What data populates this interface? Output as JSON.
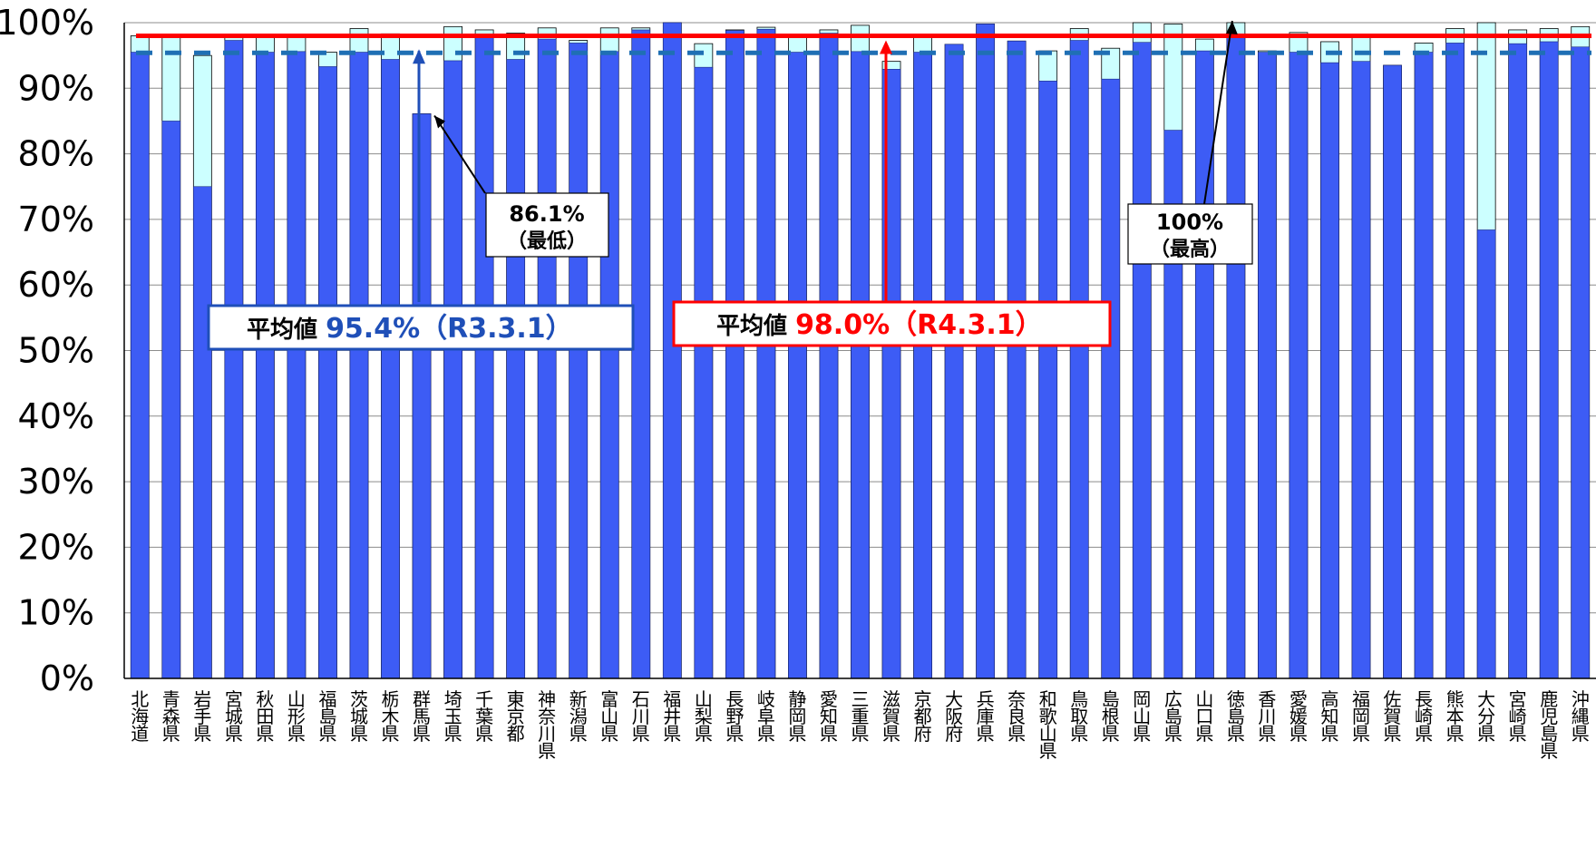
{
  "chart_data": {
    "type": "bar",
    "ylim": [
      0,
      100
    ],
    "y_tick_labels": [
      "0%",
      "10%",
      "20%",
      "30%",
      "40%",
      "50%",
      "60%",
      "70%",
      "80%",
      "90%",
      "100%"
    ],
    "grid": "horizontal",
    "colors": {
      "r3": "#3D5CF5",
      "r4": "#CCFFFF",
      "avg_r4": "#FF0000",
      "avg_r3": "#1F6FB4",
      "box_blue": "#1F4FB8",
      "box_red": "#FF0000"
    },
    "categories": [
      "北海道",
      "青森県",
      "岩手県",
      "宮城県",
      "秋田県",
      "山形県",
      "福島県",
      "茨城県",
      "栃木県",
      "群馬県",
      "埼玉県",
      "千葉県",
      "東京都",
      "神奈川県",
      "新潟県",
      "富山県",
      "石川県",
      "福井県",
      "山梨県",
      "長野県",
      "岐阜県",
      "静岡県",
      "愛知県",
      "三重県",
      "滋賀県",
      "京都府",
      "大阪府",
      "兵庫県",
      "奈良県",
      "和歌山県",
      "鳥取県",
      "島根県",
      "岡山県",
      "広島県",
      "山口県",
      "徳島県",
      "香川県",
      "愛媛県",
      "高知県",
      "福岡県",
      "佐賀県",
      "長崎県",
      "熊本県",
      "大分県",
      "宮崎県",
      "鹿児島県",
      "沖縄県"
    ],
    "series": [
      {
        "key": "r3",
        "values": [
          95.5,
          85.0,
          75.0,
          97.3,
          95.5,
          95.6,
          93.3,
          95.5,
          94.4,
          86.1,
          94.2,
          97.8,
          94.4,
          97.5,
          96.9,
          95.6,
          98.9,
          100,
          93.2,
          98.8,
          99.0,
          95.5,
          98.4,
          95.6,
          92.9,
          95.5,
          96.7,
          99.8,
          97.2,
          91.1,
          97.3,
          91.4,
          97.0,
          83.6,
          95.7,
          98.3,
          95.5,
          95.5,
          93.9,
          94.1,
          93.5,
          95.5,
          96.9,
          68.4,
          96.8,
          97.1,
          96.3
        ]
      },
      {
        "key": "r4",
        "values": [
          98.0,
          98.0,
          95.0,
          97.8,
          98.0,
          98.0,
          95.5,
          99.1,
          98.3,
          86.1,
          99.4,
          98.9,
          98.4,
          99.2,
          97.3,
          99.2,
          99.2,
          100,
          96.8,
          98.9,
          99.3,
          98.0,
          98.9,
          99.6,
          94.1,
          98.0,
          96.7,
          99.8,
          97.2,
          95.7,
          99.1,
          96.1,
          100,
          99.8,
          97.5,
          100,
          95.7,
          98.5,
          97.1,
          98.0,
          93.5,
          96.9,
          99.1,
          100,
          98.9,
          99.1,
          99.4
        ]
      }
    ],
    "avg_lines": [
      {
        "series": "r3",
        "value": 95.4,
        "style": "dashed"
      },
      {
        "series": "r4",
        "value": 98.0,
        "style": "solid"
      }
    ],
    "annotations": {
      "min": {
        "value_label": "86.1%",
        "note": "（最低）",
        "category": "群馬県"
      },
      "max": {
        "value_label": "100%",
        "note": "（最高）",
        "category": "徳島県"
      },
      "avg_r3": {
        "prefix": "平均値",
        "value": "95.4%（R3.3.1）"
      },
      "avg_r4": {
        "prefix": "平均値",
        "value": "98.0%（R4.3.1）"
      }
    }
  }
}
